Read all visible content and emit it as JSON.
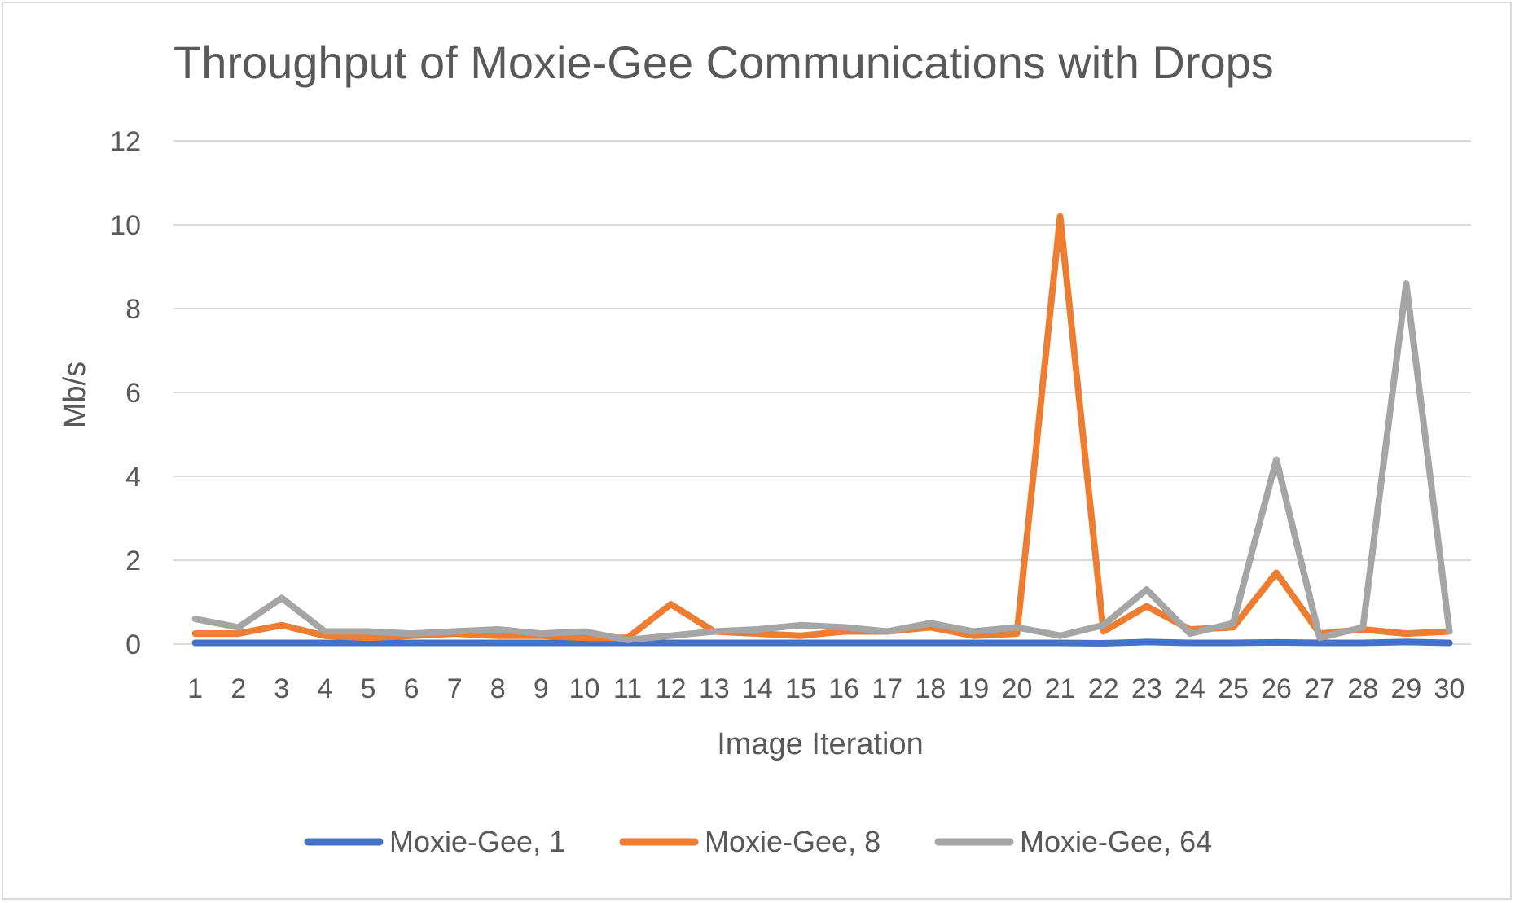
{
  "chart_data": {
    "type": "line",
    "title": "Throughput of Moxie-Gee Communications with Drops",
    "xlabel": "Image Iteration",
    "ylabel": "Mb/s",
    "ylim": [
      0,
      12
    ],
    "yticks": [
      "0",
      "2",
      "4",
      "6",
      "8",
      "10",
      "12"
    ],
    "grid": true,
    "legend_position": "bottom",
    "categories": [
      "1",
      "2",
      "3",
      "4",
      "5",
      "6",
      "7",
      "8",
      "9",
      "10",
      "11",
      "12",
      "13",
      "14",
      "15",
      "16",
      "17",
      "18",
      "19",
      "20",
      "21",
      "22",
      "23",
      "24",
      "25",
      "26",
      "27",
      "28",
      "29",
      "30"
    ],
    "series": [
      {
        "name": "Moxie-Gee, 1",
        "color": "#4472C4",
        "values": [
          0.03,
          0.03,
          0.03,
          0.03,
          0.03,
          0.03,
          0.03,
          0.03,
          0.03,
          0.03,
          0.03,
          0.03,
          0.03,
          0.03,
          0.03,
          0.03,
          0.03,
          0.03,
          0.03,
          0.03,
          0.03,
          0.02,
          0.05,
          0.03,
          0.03,
          0.04,
          0.03,
          0.03,
          0.05,
          0.03
        ]
      },
      {
        "name": "Moxie-Gee, 8",
        "color": "#ED7D31",
        "values": [
          0.25,
          0.25,
          0.45,
          0.2,
          0.15,
          0.2,
          0.25,
          0.2,
          0.2,
          0.15,
          0.15,
          0.95,
          0.3,
          0.25,
          0.2,
          0.3,
          0.3,
          0.4,
          0.2,
          0.25,
          10.2,
          0.3,
          0.9,
          0.35,
          0.4,
          1.7,
          0.25,
          0.35,
          0.25,
          0.3
        ]
      },
      {
        "name": "Moxie-Gee, 64",
        "color": "#A5A5A5",
        "values": [
          0.6,
          0.4,
          1.1,
          0.3,
          0.3,
          0.25,
          0.3,
          0.35,
          0.25,
          0.3,
          0.1,
          0.2,
          0.3,
          0.35,
          0.45,
          0.4,
          0.3,
          0.5,
          0.3,
          0.4,
          0.2,
          0.45,
          1.3,
          0.25,
          0.5,
          4.4,
          0.15,
          0.4,
          8.6,
          0.3
        ]
      }
    ]
  }
}
